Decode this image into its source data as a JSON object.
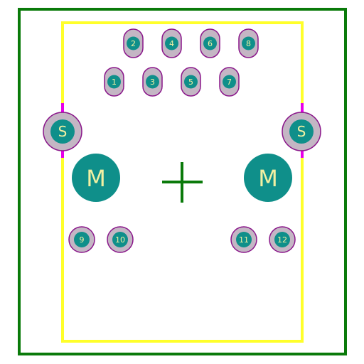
{
  "colors": {
    "background": "#ffffff",
    "courtyard": "#0a7a0a",
    "silkscreen": "#ffff2a",
    "pad_fill": "#0f8f8a",
    "pad_ring": "#c4b6c4",
    "pad_outline": "#8a168a",
    "pad_label": "#f2f0a2",
    "marker": "#e800e8",
    "origin_cross": "#0a7a0a"
  },
  "signal_pads": [
    {
      "label": "1"
    },
    {
      "label": "2"
    },
    {
      "label": "3"
    },
    {
      "label": "4"
    },
    {
      "label": "5"
    },
    {
      "label": "6"
    },
    {
      "label": "7"
    },
    {
      "label": "8"
    }
  ],
  "shield_pads": [
    {
      "label": "S"
    },
    {
      "label": "S"
    }
  ],
  "mount_holes": [
    {
      "label": "M"
    },
    {
      "label": "M"
    }
  ],
  "aux_pads": [
    {
      "label": "9"
    },
    {
      "label": "10"
    },
    {
      "label": "11"
    },
    {
      "label": "12"
    }
  ]
}
